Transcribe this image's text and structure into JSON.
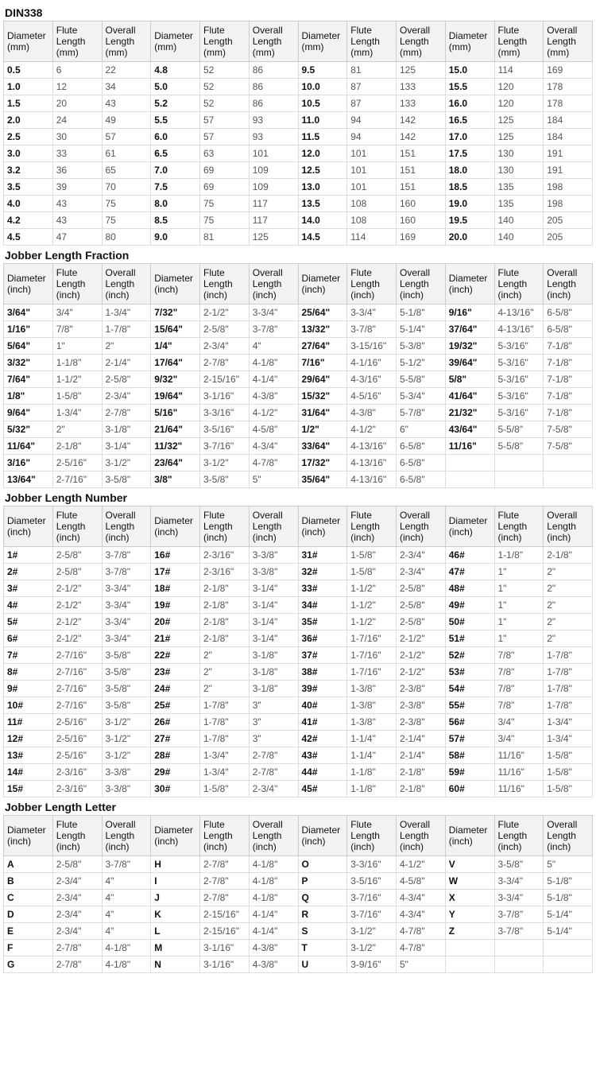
{
  "sections": [
    {
      "title": "DIN338",
      "unit": "mm",
      "data": [
        [
          [
            "0.5",
            "6",
            "22"
          ],
          [
            "4.8",
            "52",
            "86"
          ],
          [
            "9.5",
            "81",
            "125"
          ],
          [
            "15.0",
            "114",
            "169"
          ]
        ],
        [
          [
            "1.0",
            "12",
            "34"
          ],
          [
            "5.0",
            "52",
            "86"
          ],
          [
            "10.0",
            "87",
            "133"
          ],
          [
            "15.5",
            "120",
            "178"
          ]
        ],
        [
          [
            "1.5",
            "20",
            "43"
          ],
          [
            "5.2",
            "52",
            "86"
          ],
          [
            "10.5",
            "87",
            "133"
          ],
          [
            "16.0",
            "120",
            "178"
          ]
        ],
        [
          [
            "2.0",
            "24",
            "49"
          ],
          [
            "5.5",
            "57",
            "93"
          ],
          [
            "11.0",
            "94",
            "142"
          ],
          [
            "16.5",
            "125",
            "184"
          ]
        ],
        [
          [
            "2.5",
            "30",
            "57"
          ],
          [
            "6.0",
            "57",
            "93"
          ],
          [
            "11.5",
            "94",
            "142"
          ],
          [
            "17.0",
            "125",
            "184"
          ]
        ],
        [
          [
            "3.0",
            "33",
            "61"
          ],
          [
            "6.5",
            "63",
            "101"
          ],
          [
            "12.0",
            "101",
            "151"
          ],
          [
            "17.5",
            "130",
            "191"
          ]
        ],
        [
          [
            "3.2",
            "36",
            "65"
          ],
          [
            "7.0",
            "69",
            "109"
          ],
          [
            "12.5",
            "101",
            "151"
          ],
          [
            "18.0",
            "130",
            "191"
          ]
        ],
        [
          [
            "3.5",
            "39",
            "70"
          ],
          [
            "7.5",
            "69",
            "109"
          ],
          [
            "13.0",
            "101",
            "151"
          ],
          [
            "18.5",
            "135",
            "198"
          ]
        ],
        [
          [
            "4.0",
            "43",
            "75"
          ],
          [
            "8.0",
            "75",
            "117"
          ],
          [
            "13.5",
            "108",
            "160"
          ],
          [
            "19.0",
            "135",
            "198"
          ]
        ],
        [
          [
            "4.2",
            "43",
            "75"
          ],
          [
            "8.5",
            "75",
            "117"
          ],
          [
            "14.0",
            "108",
            "160"
          ],
          [
            "19.5",
            "140",
            "205"
          ]
        ],
        [
          [
            "4.5",
            "47",
            "80"
          ],
          [
            "9.0",
            "81",
            "125"
          ],
          [
            "14.5",
            "114",
            "169"
          ],
          [
            "20.0",
            "140",
            "205"
          ]
        ]
      ]
    },
    {
      "title": "Jobber Length  Fraction",
      "unit": "inch",
      "data": [
        [
          [
            "3/64\"",
            "3/4\"",
            "1-3/4\""
          ],
          [
            "7/32\"",
            "2-1/2\"",
            "3-3/4\""
          ],
          [
            "25/64\"",
            "3-3/4\"",
            "5-1/8\""
          ],
          [
            "9/16\"",
            "4-13/16\"",
            "6-5/8\""
          ]
        ],
        [
          [
            "1/16\"",
            "7/8\"",
            "1-7/8\""
          ],
          [
            "15/64\"",
            "2-5/8\"",
            "3-7/8\""
          ],
          [
            "13/32\"",
            "3-7/8\"",
            "5-1/4\""
          ],
          [
            "37/64\"",
            "4-13/16\"",
            "6-5/8\""
          ]
        ],
        [
          [
            "5/64\"",
            "1\"",
            "2\""
          ],
          [
            "1/4\"",
            "2-3/4\"",
            "4\""
          ],
          [
            "27/64\"",
            "3-15/16\"",
            "5-3/8\""
          ],
          [
            "19/32\"",
            "5-3/16\"",
            "7-1/8\""
          ]
        ],
        [
          [
            "3/32\"",
            "1-1/8\"",
            "2-1/4\""
          ],
          [
            "17/64\"",
            "2-7/8\"",
            "4-1/8\""
          ],
          [
            "7/16\"",
            "4-1/16\"",
            "5-1/2\""
          ],
          [
            "39/64\"",
            "5-3/16\"",
            "7-1/8\""
          ]
        ],
        [
          [
            "7/64\"",
            "1-1/2\"",
            "2-5/8\""
          ],
          [
            "9/32\"",
            "2-15/16\"",
            "4-1/4\""
          ],
          [
            "29/64\"",
            "4-3/16\"",
            "5-5/8\""
          ],
          [
            "5/8\"",
            "5-3/16\"",
            "7-1/8\""
          ]
        ],
        [
          [
            "1/8\"",
            "1-5/8\"",
            "2-3/4\""
          ],
          [
            "19/64\"",
            "3-1/16\"",
            "4-3/8\""
          ],
          [
            "15/32\"",
            "4-5/16\"",
            "5-3/4\""
          ],
          [
            "41/64\"",
            "5-3/16\"",
            "7-1/8\""
          ]
        ],
        [
          [
            "9/64\"",
            "1-3/4\"",
            "2-7/8\""
          ],
          [
            "5/16\"",
            "3-3/16\"",
            "4-1/2\""
          ],
          [
            "31/64\"",
            "4-3/8\"",
            "5-7/8\""
          ],
          [
            "21/32\"",
            "5-3/16\"",
            "7-1/8\""
          ]
        ],
        [
          [
            "5/32\"",
            "2\"",
            "3-1/8\""
          ],
          [
            "21/64\"",
            "3-5/16\"",
            "4-5/8\""
          ],
          [
            "1/2\"",
            "4-1/2\"",
            "6\""
          ],
          [
            "43/64\"",
            "5-5/8\"",
            "7-5/8\""
          ]
        ],
        [
          [
            "11/64\"",
            "2-1/8\"",
            "3-1/4\""
          ],
          [
            "11/32\"",
            "3-7/16\"",
            "4-3/4\""
          ],
          [
            "33/64\"",
            "4-13/16\"",
            "6-5/8\""
          ],
          [
            "11/16\"",
            "5-5/8\"",
            "7-5/8\""
          ]
        ],
        [
          [
            "3/16\"",
            "2-5/16\"",
            "3-1/2\""
          ],
          [
            "23/64\"",
            "3-1/2\"",
            "4-7/8\""
          ],
          [
            "17/32\"",
            "4-13/16\"",
            "6-5/8\""
          ],
          [
            "",
            "",
            ""
          ]
        ],
        [
          [
            "13/64\"",
            "2-7/16\"",
            "3-5/8\""
          ],
          [
            "3/8\"",
            "3-5/8\"",
            "5\""
          ],
          [
            "35/64\"",
            "4-13/16\"",
            "6-5/8\""
          ],
          [
            "",
            "",
            ""
          ]
        ]
      ]
    },
    {
      "title": "Jobber Length Number",
      "unit": "inch",
      "data": [
        [
          [
            "1#",
            "2-5/8\"",
            "3-7/8\""
          ],
          [
            "16#",
            "2-3/16\"",
            "3-3/8\""
          ],
          [
            "31#",
            "1-5/8\"",
            "2-3/4\""
          ],
          [
            "46#",
            "1-1/8\"",
            "2-1/8\""
          ]
        ],
        [
          [
            "2#",
            "2-5/8\"",
            "3-7/8\""
          ],
          [
            "17#",
            "2-3/16\"",
            "3-3/8\""
          ],
          [
            "32#",
            "1-5/8\"",
            "2-3/4\""
          ],
          [
            "47#",
            "1\"",
            "2\""
          ]
        ],
        [
          [
            "3#",
            "2-1/2\"",
            "3-3/4\""
          ],
          [
            "18#",
            "2-1/8\"",
            "3-1/4\""
          ],
          [
            "33#",
            "1-1/2\"",
            "2-5/8\""
          ],
          [
            "48#",
            "1\"",
            "2\""
          ]
        ],
        [
          [
            "4#",
            "2-1/2\"",
            "3-3/4\""
          ],
          [
            "19#",
            "2-1/8\"",
            "3-1/4\""
          ],
          [
            "34#",
            "1-1/2\"",
            "2-5/8\""
          ],
          [
            "49#",
            "1\"",
            "2\""
          ]
        ],
        [
          [
            "5#",
            "2-1/2\"",
            "3-3/4\""
          ],
          [
            "20#",
            "2-1/8\"",
            "3-1/4\""
          ],
          [
            "35#",
            "1-1/2\"",
            "2-5/8\""
          ],
          [
            "50#",
            "1\"",
            "2\""
          ]
        ],
        [
          [
            "6#",
            "2-1/2\"",
            "3-3/4\""
          ],
          [
            "21#",
            "2-1/8\"",
            "3-1/4\""
          ],
          [
            "36#",
            "1-7/16\"",
            "2-1/2\""
          ],
          [
            "51#",
            "1\"",
            "2\""
          ]
        ],
        [
          [
            "7#",
            "2-7/16\"",
            "3-5/8\""
          ],
          [
            "22#",
            "2\"",
            "3-1/8\""
          ],
          [
            "37#",
            "1-7/16\"",
            "2-1/2\""
          ],
          [
            "52#",
            "7/8\"",
            "1-7/8\""
          ]
        ],
        [
          [
            "8#",
            "2-7/16\"",
            "3-5/8\""
          ],
          [
            "23#",
            "2\"",
            "3-1/8\""
          ],
          [
            "38#",
            "1-7/16\"",
            "2-1/2\""
          ],
          [
            "53#",
            "7/8\"",
            "1-7/8\""
          ]
        ],
        [
          [
            "9#",
            "2-7/16\"",
            "3-5/8\""
          ],
          [
            "24#",
            "2\"",
            "3-1/8\""
          ],
          [
            "39#",
            "1-3/8\"",
            "2-3/8\""
          ],
          [
            "54#",
            "7/8\"",
            "1-7/8\""
          ]
        ],
        [
          [
            "10#",
            "2-7/16\"",
            "3-5/8\""
          ],
          [
            "25#",
            "1-7/8\"",
            "3\""
          ],
          [
            "40#",
            "1-3/8\"",
            "2-3/8\""
          ],
          [
            "55#",
            "7/8\"",
            "1-7/8\""
          ]
        ],
        [
          [
            "11#",
            "2-5/16\"",
            "3-1/2\""
          ],
          [
            "26#",
            "1-7/8\"",
            "3\""
          ],
          [
            "41#",
            "1-3/8\"",
            "2-3/8\""
          ],
          [
            "56#",
            "3/4\"",
            "1-3/4\""
          ]
        ],
        [
          [
            "12#",
            "2-5/16\"",
            "3-1/2\""
          ],
          [
            "27#",
            "1-7/8\"",
            "3\""
          ],
          [
            "42#",
            "1-1/4\"",
            "2-1/4\""
          ],
          [
            "57#",
            "3/4\"",
            "1-3/4\""
          ]
        ],
        [
          [
            "13#",
            "2-5/16\"",
            "3-1/2\""
          ],
          [
            "28#",
            "1-3/4\"",
            "2-7/8\""
          ],
          [
            "43#",
            "1-1/4\"",
            "2-1/4\""
          ],
          [
            "58#",
            "11/16\"",
            "1-5/8\""
          ]
        ],
        [
          [
            "14#",
            "2-3/16\"",
            "3-3/8\""
          ],
          [
            "29#",
            "1-3/4\"",
            "2-7/8\""
          ],
          [
            "44#",
            "1-1/8\"",
            "2-1/8\""
          ],
          [
            "59#",
            "11/16\"",
            "1-5/8\""
          ]
        ],
        [
          [
            "15#",
            "2-3/16\"",
            "3-3/8\""
          ],
          [
            "30#",
            "1-5/8\"",
            "2-3/4\""
          ],
          [
            "45#",
            "1-1/8\"",
            "2-1/8\""
          ],
          [
            "60#",
            "11/16\"",
            "1-5/8\""
          ]
        ]
      ]
    },
    {
      "title": "Jobber Length Letter",
      "unit": "inch",
      "data": [
        [
          [
            "A",
            "2-5/8\"",
            "3-7/8\""
          ],
          [
            "H",
            "2-7/8\"",
            "4-1/8\""
          ],
          [
            "O",
            "3-3/16\"",
            "4-1/2\""
          ],
          [
            "V",
            "3-5/8\"",
            "5\""
          ]
        ],
        [
          [
            "B",
            "2-3/4\"",
            "4\""
          ],
          [
            "I",
            "2-7/8\"",
            "4-1/8\""
          ],
          [
            "P",
            "3-5/16\"",
            "4-5/8\""
          ],
          [
            "W",
            "3-3/4\"",
            "5-1/8\""
          ]
        ],
        [
          [
            "C",
            "2-3/4\"",
            "4\""
          ],
          [
            "J",
            "2-7/8\"",
            "4-1/8\""
          ],
          [
            "Q",
            "3-7/16\"",
            "4-3/4\""
          ],
          [
            "X",
            "3-3/4\"",
            "5-1/8\""
          ]
        ],
        [
          [
            "D",
            "2-3/4\"",
            "4\""
          ],
          [
            "K",
            "2-15/16\"",
            "4-1/4\""
          ],
          [
            "R",
            "3-7/16\"",
            "4-3/4\""
          ],
          [
            "Y",
            "3-7/8\"",
            "5-1/4\""
          ]
        ],
        [
          [
            "E",
            "2-3/4\"",
            "4\""
          ],
          [
            "L",
            "2-15/16\"",
            "4-1/4\""
          ],
          [
            "S",
            "3-1/2\"",
            "4-7/8\""
          ],
          [
            "Z",
            "3-7/8\"",
            "5-1/4\""
          ]
        ],
        [
          [
            "F",
            "2-7/8\"",
            "4-1/8\""
          ],
          [
            "M",
            "3-1/16\"",
            "4-3/8\""
          ],
          [
            "T",
            "3-1/2\"",
            "4-7/8\""
          ],
          [
            "",
            "",
            ""
          ]
        ],
        [
          [
            "G",
            "2-7/8\"",
            "4-1/8\""
          ],
          [
            "N",
            "3-1/16\"",
            "4-3/8\""
          ],
          [
            "U",
            "3-9/16\"",
            "5\""
          ],
          [
            "",
            "",
            ""
          ]
        ]
      ]
    }
  ],
  "header_labels": {
    "diameter": "Diameter",
    "flute": "Flute Length",
    "overall": "Overall Length"
  }
}
